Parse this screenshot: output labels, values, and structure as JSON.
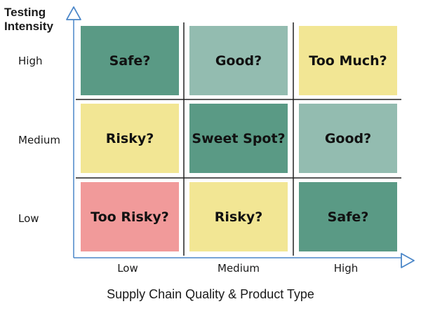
{
  "y_axis": {
    "title_line1": "Testing",
    "title_line2": "Intensity"
  },
  "x_axis": {
    "title": "Supply Chain Quality & Product Type"
  },
  "rows": [
    "High",
    "Medium",
    "Low"
  ],
  "columns": [
    "Low",
    "Medium",
    "High"
  ],
  "cells": [
    [
      {
        "label": "Safe?",
        "color": "#5a9a85"
      },
      {
        "label": "Good?",
        "color": "#93bcb0"
      },
      {
        "label": "Too Much?",
        "color": "#f2e694"
      }
    ],
    [
      {
        "label": "Risky?",
        "color": "#f2e694"
      },
      {
        "label": "Sweet Spot?",
        "color": "#5a9a85"
      },
      {
        "label": "Good?",
        "color": "#93bcb0"
      }
    ],
    [
      {
        "label": "Too Risky?",
        "color": "#f19a9a"
      },
      {
        "label": "Risky?",
        "color": "#f2e694"
      },
      {
        "label": "Safe?",
        "color": "#5a9a85"
      }
    ]
  ],
  "colors": {
    "axis": "#4a86c8",
    "grid": "#222222"
  }
}
